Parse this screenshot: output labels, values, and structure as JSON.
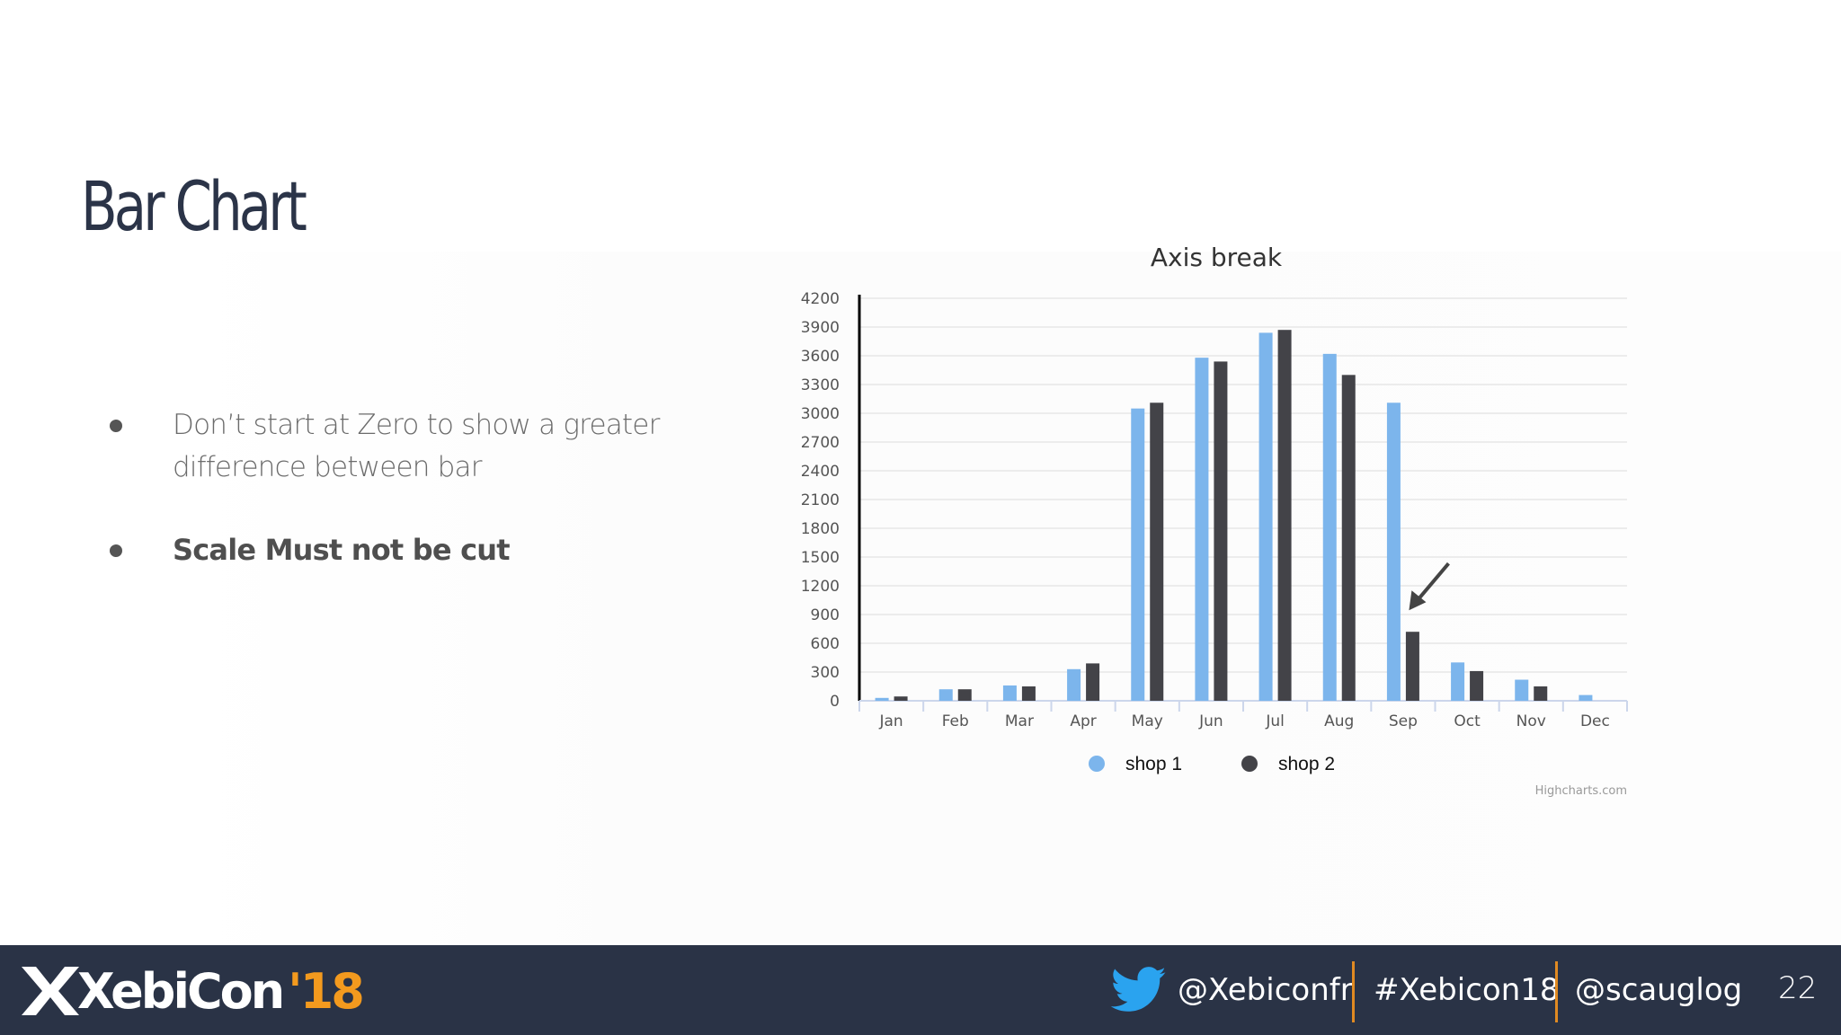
{
  "slide": {
    "title": "Bar Chart",
    "bullets": [
      "Don’t start at Zero to show a greater difference between bar",
      "Scale Must not be cut"
    ],
    "page_number": "22"
  },
  "footer": {
    "logo_text": "XebiCon",
    "logo_year": "'18",
    "twitter_handle": "@Xebiconfr",
    "hashtag": "#Xebicon18",
    "speaker_handle": "@scauglog",
    "colors": {
      "background": "#2a3346",
      "accent": "#f39a1e",
      "divider": "#e08a22"
    }
  },
  "chart_data": {
    "type": "bar",
    "title": "Axis break",
    "categories": [
      "Jan",
      "Feb",
      "Mar",
      "Apr",
      "May",
      "Jun",
      "Jul",
      "Aug",
      "Sep",
      "Oct",
      "Nov",
      "Dec"
    ],
    "series": [
      {
        "name": "shop 1",
        "color": "#7cb5ec",
        "values": [
          30,
          120,
          160,
          330,
          3050,
          3580,
          3840,
          3620,
          3110,
          400,
          220,
          60
        ]
      },
      {
        "name": "shop 2",
        "color": "#434348",
        "values": [
          45,
          120,
          150,
          390,
          3110,
          3540,
          3870,
          3400,
          720,
          310,
          150,
          0
        ]
      }
    ],
    "yticks": [
      "0",
      "300",
      "600",
      "900",
      "1200",
      "1500",
      "1800",
      "2100",
      "2400",
      "2700",
      "3000",
      "3300",
      "3600",
      "3900",
      "4200"
    ],
    "ylim": [
      0,
      4200
    ],
    "xlabel": "",
    "ylabel": "",
    "grid": true,
    "legend_position": "bottom-center",
    "annotation": "arrow pointing at Sep shop 2 bar",
    "credits": "Highcharts.com"
  }
}
